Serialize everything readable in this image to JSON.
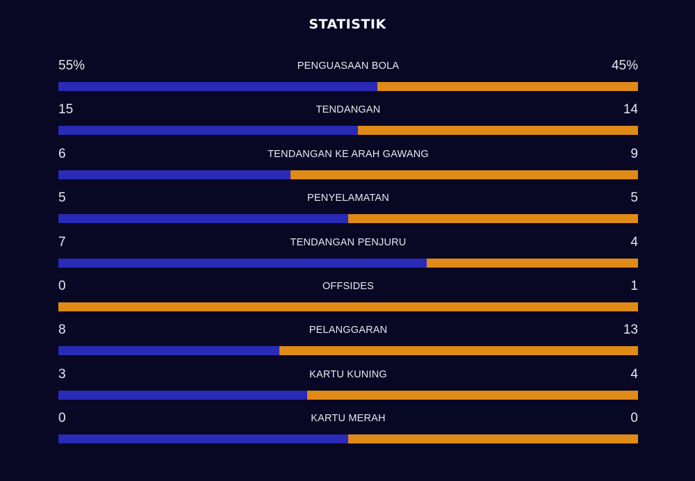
{
  "title": "STATISTIK",
  "colors": {
    "background": "#080824",
    "home": "#2a2ab8",
    "away": "#e08a17"
  },
  "stats": [
    {
      "label": "PENGUASAAN BOLA",
      "left": "55%",
      "right": "45%",
      "left_share": 0.55
    },
    {
      "label": "TENDANGAN",
      "left": "15",
      "right": "14",
      "left_share": 0.517
    },
    {
      "label": "TENDANGAN KE ARAH GAWANG",
      "left": "6",
      "right": "9",
      "left_share": 0.4
    },
    {
      "label": "PENYELAMATAN",
      "left": "5",
      "right": "5",
      "left_share": 0.5
    },
    {
      "label": "TENDANGAN PENJURU",
      "left": "7",
      "right": "4",
      "left_share": 0.636
    },
    {
      "label": "OFFSIDES",
      "left": "0",
      "right": "1",
      "left_share": 0.0
    },
    {
      "label": "PELANGGARAN",
      "left": "8",
      "right": "13",
      "left_share": 0.381
    },
    {
      "label": "KARTU KUNING",
      "left": "3",
      "right": "4",
      "left_share": 0.429
    },
    {
      "label": "KARTU MERAH",
      "left": "0",
      "right": "0",
      "left_share": 0.5
    }
  ]
}
